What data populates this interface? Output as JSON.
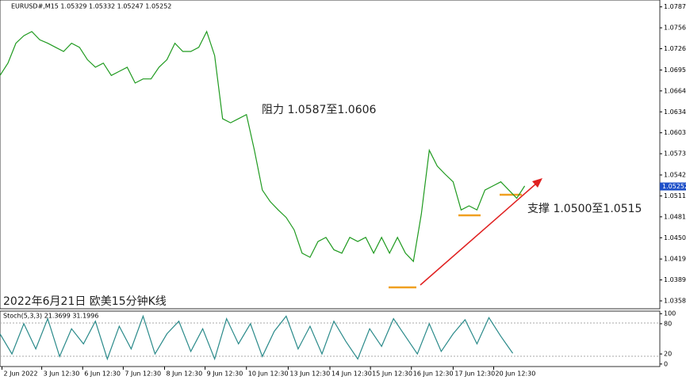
{
  "chart_data": [
    {
      "type": "line",
      "title": "EURUSD#,M15 1.05329 1.05332 1.05247 1.05252",
      "x": [
        0,
        2,
        4,
        6,
        8,
        10,
        12,
        14,
        16,
        18,
        20,
        22,
        24,
        26,
        28,
        30,
        32,
        34,
        36,
        38,
        40,
        42,
        44,
        46,
        48,
        50,
        52,
        54,
        56,
        58,
        60,
        62,
        64,
        66,
        68,
        70,
        72,
        74,
        76,
        78,
        80,
        82,
        84,
        86,
        88,
        90,
        92,
        94,
        96,
        98,
        100,
        102,
        104,
        106,
        108,
        110,
        112,
        114,
        116,
        118,
        120,
        122,
        124,
        126,
        128,
        130,
        132
      ],
      "values": [
        1.0687,
        1.0705,
        1.0734,
        1.0745,
        1.0751,
        1.0739,
        1.0734,
        1.0728,
        1.0722,
        1.0734,
        1.0728,
        1.071,
        1.0699,
        1.0705,
        1.0687,
        1.0693,
        1.0699,
        1.0676,
        1.0682,
        1.0682,
        1.0699,
        1.071,
        1.0734,
        1.0722,
        1.0722,
        1.0728,
        1.0751,
        1.0716,
        1.0624,
        1.0618,
        1.0624,
        1.063,
        1.0578,
        1.052,
        1.0503,
        1.0491,
        1.048,
        1.0462,
        1.0428,
        1.0422,
        1.0445,
        1.0451,
        1.0433,
        1.0428,
        1.0451,
        1.0445,
        1.0451,
        1.0428,
        1.0451,
        1.0428,
        1.0451,
        1.0428,
        1.0416,
        1.0485,
        1.0578,
        1.0555,
        1.0543,
        1.0532,
        1.0491,
        1.0497,
        1.0491,
        1.052,
        1.0526,
        1.0532,
        1.052,
        1.0508,
        1.0526
      ],
      "color": "#1f9a1f",
      "xlim": [
        0,
        166
      ],
      "ylim": [
        1.0347,
        1.0797
      ],
      "yticks": [
        {
          "value": 1.0787,
          "label": "1.07870"
        },
        1.07565,
        {
          "value": 1.0726,
          "label": "1.07260"
        },
        {
          "value": 1.0695,
          "label": "1.06950"
        },
        1.06645,
        {
          "value": 1.0634,
          "label": "1.06340"
        },
        1.06035,
        {
          "value": 1.0573,
          "label": "1.05730"
        },
        {
          "value": 1.0542,
          "label": "1.05420"
        },
        1.05115,
        {
          "value": 1.0481,
          "label": "1.04810"
        },
        1.04505,
        1.04195,
        {
          "value": 1.0389,
          "label": "1.03890"
        },
        1.03585
      ],
      "xticks": [
        {
          "value": 0.5,
          "label": "2 Jun 2022"
        },
        {
          "value": 10.5,
          "label": "3 Jun 12:30"
        },
        {
          "value": 20.8,
          "label": "6 Jun 12:30"
        },
        {
          "value": 31,
          "label": "7 Jun 12:30"
        },
        {
          "value": 41.4,
          "label": "8 Jun 12:30"
        },
        {
          "value": 51.6,
          "label": "9 Jun 12:30"
        },
        {
          "value": 62,
          "label": "10 Jun 12:30"
        },
        {
          "value": 72.5,
          "label": "13 Jun 12:30"
        },
        {
          "value": 83,
          "label": "14 Jun 12:30"
        },
        {
          "value": 93.2,
          "label": "15 Jun 12:30"
        },
        {
          "value": 103.5,
          "label": "16 Jun 12:30"
        },
        {
          "value": 114,
          "label": "17 Jun 12:30"
        },
        {
          "value": 124.2,
          "label": "20 Jun 12:30"
        }
      ],
      "last_price": {
        "value": 1.05252,
        "label": "1.05252"
      }
    },
    {
      "type": "line",
      "title": "Stoch(5,3,3) 21.3699 31.1996",
      "x": [
        0,
        3,
        6,
        9,
        12,
        15,
        18,
        21,
        24,
        27,
        30,
        33,
        36,
        39,
        42,
        45,
        48,
        51,
        54,
        57,
        60,
        63,
        66,
        69,
        72,
        75,
        78,
        81,
        84,
        87,
        90,
        93,
        96,
        99,
        102,
        105,
        108,
        111,
        114,
        117,
        120,
        123,
        126,
        129
      ],
      "values": [
        60,
        20,
        80,
        30,
        90,
        15,
        70,
        40,
        85,
        10,
        75,
        30,
        95,
        20,
        60,
        85,
        25,
        70,
        10,
        90,
        40,
        80,
        15,
        65,
        95,
        30,
        75,
        20,
        85,
        45,
        10,
        70,
        35,
        90,
        55,
        20,
        80,
        25,
        60,
        88,
        40,
        92,
        55,
        21.3699
      ],
      "color": "#2a8a8a",
      "xlim": [
        0,
        166
      ],
      "ylim": [
        -5,
        105
      ],
      "yticks": [
        0,
        20,
        80,
        100
      ]
    }
  ],
  "annotations": [
    "阻力 1.0587至1.0606",
    "支撑 1.0500至1.0515",
    "2022年6月21日 欧美15分钟K线"
  ]
}
